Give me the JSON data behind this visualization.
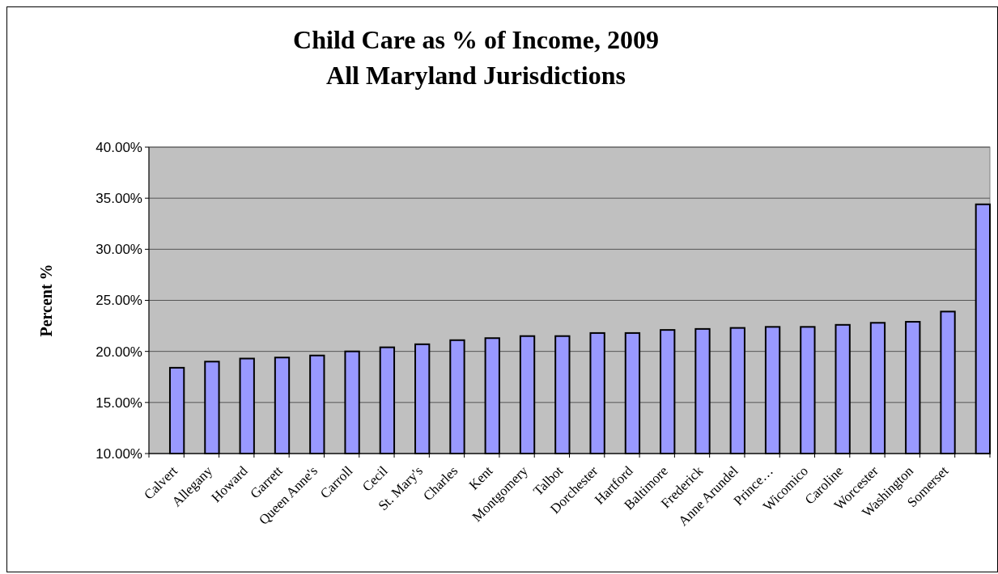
{
  "chart_data": {
    "type": "bar",
    "title": "Child Care as % of Income, 2009",
    "subtitle": "All Maryland Jurisdictions",
    "ylabel": "Percent %",
    "categories": [
      "Calvert",
      "Allegany",
      "Howard",
      "Garrett",
      "Queen Anne's",
      "Carroll",
      "Cecil",
      "St. Mary's",
      "Charles",
      "Kent",
      "Montgomery",
      "Talbot",
      "Dorchester",
      "Hartford",
      "Baltimore",
      "Frederick",
      "Anne Arundel",
      "Prince…",
      "Wicomico",
      "Caroline",
      "Worcester",
      "Washington",
      "Somerset",
      null
    ],
    "values": [
      18.4,
      19.0,
      19.3,
      19.4,
      19.6,
      20.0,
      20.4,
      20.7,
      21.1,
      21.3,
      21.5,
      21.5,
      21.8,
      21.8,
      22.1,
      22.2,
      22.3,
      22.4,
      22.4,
      22.6,
      22.8,
      22.9,
      23.9,
      34.4
    ],
    "color": "#9999ff",
    "ylim": [
      10,
      40
    ],
    "yticks": [
      {
        "value": 10,
        "label": "10.00%"
      },
      {
        "value": 15,
        "label": "15.00%"
      },
      {
        "value": 20,
        "label": "20.00%"
      },
      {
        "value": 25,
        "label": "25.00%"
      },
      {
        "value": 30,
        "label": "30.00%"
      },
      {
        "value": 35,
        "label": "35.00%"
      },
      {
        "value": 40,
        "label": "40.00%"
      }
    ],
    "grid": "y"
  }
}
